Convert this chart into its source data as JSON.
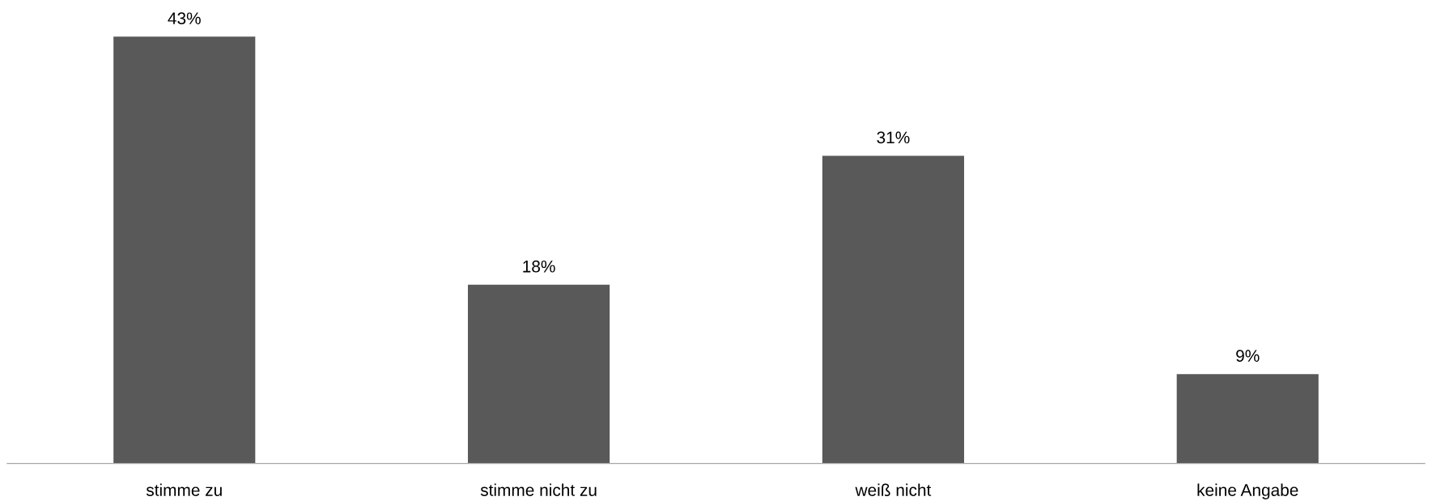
{
  "chart_data": {
    "type": "bar",
    "categories": [
      "stimme zu",
      "stimme nicht zu",
      "weiß nicht",
      "keine Angabe"
    ],
    "values": [
      43,
      18,
      31,
      9
    ],
    "value_labels": [
      "43%",
      "18%",
      "31%",
      "9%"
    ],
    "color": "#595959",
    "grid": false
  }
}
